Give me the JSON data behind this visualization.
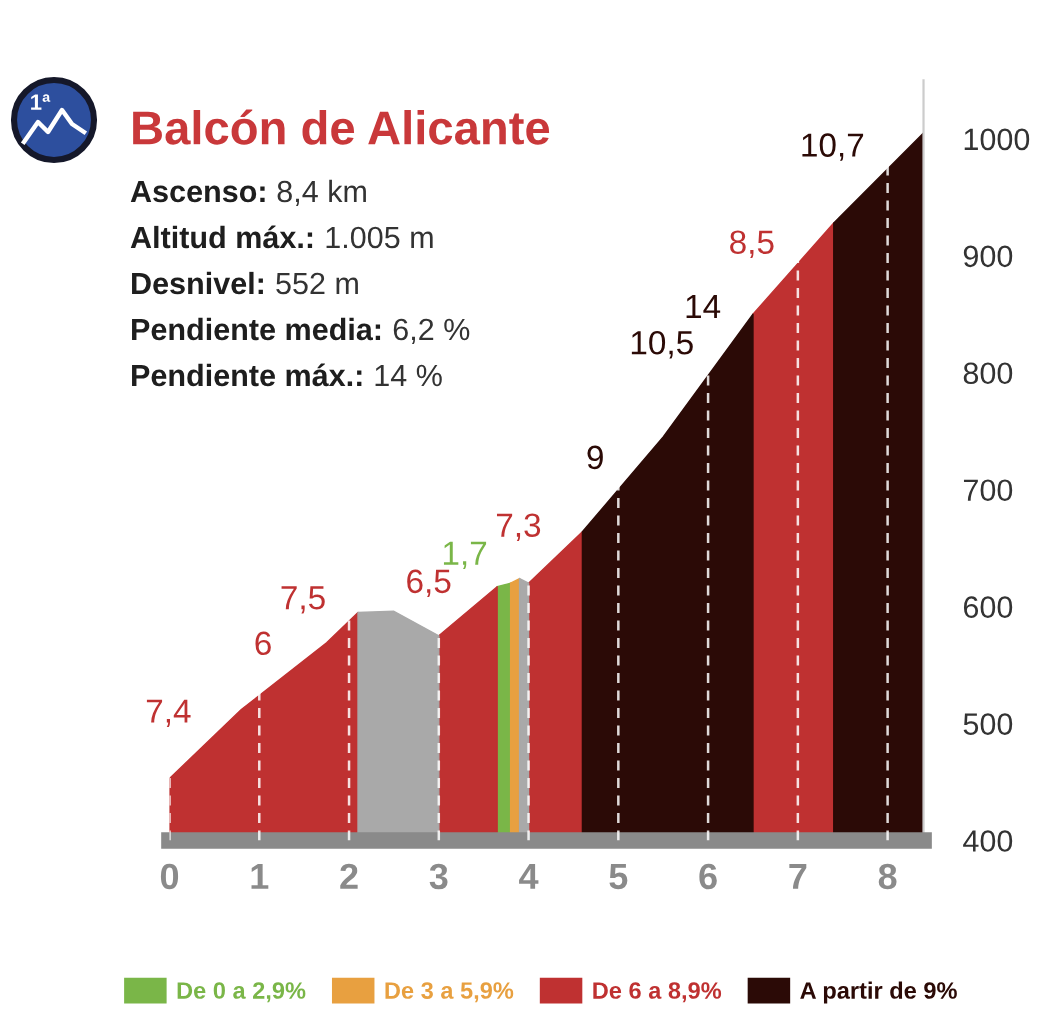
{
  "chart_data": {
    "type": "area",
    "title": "Balcón de Alicante",
    "annotations": [
      "1ª",
      "Ascenso: 8,4 km",
      "Altitud máx.: 1.005 m",
      "Desnivel: 552 m",
      "Pendiente media: 6,2 %",
      "Pendiente máx.: 14 %",
      {
        "text": "7,4",
        "x": 0.4,
        "y": 483
      },
      {
        "text": "6",
        "x": 1.3,
        "y": 541
      },
      {
        "text": "7,5",
        "x": 1.9,
        "y": 580
      },
      {
        "text": "6,5",
        "x": 3.3,
        "y": 594
      },
      {
        "text": "1,7",
        "x": 3.7,
        "y": 618
      },
      {
        "text": "7,3",
        "x": 4.3,
        "y": 642
      },
      {
        "text": "9",
        "x": 5.0,
        "y": 700
      },
      {
        "text": "10,5",
        "x": 6.0,
        "y": 798
      },
      {
        "text": "14",
        "x": 6.3,
        "y": 829
      },
      {
        "text": "8,5",
        "x": 6.9,
        "y": 884
      },
      {
        "text": "10,7",
        "x": 7.9,
        "y": 967
      }
    ],
    "series": [
      {
        "name": "De 0 a 2,9%",
        "color": "#7ab648",
        "x": [
          3.65,
          3.8
        ],
        "values": [
          617,
          620
        ]
      },
      {
        "name": "De 3 a 5,9%",
        "color": "#e8a040",
        "x": [
          3.8,
          3.9
        ],
        "values": [
          620,
          624
        ]
      },
      {
        "name": "De 6 a 8,9%",
        "color": "#bf3131",
        "x": [
          0,
          0.8,
          1.75,
          2.1
        ],
        "values": [
          453,
          512,
          569,
          595
        ]
      },
      {
        "color": "#bf3131",
        "x": [
          3.0,
          3.65
        ],
        "values": [
          575,
          617
        ]
      },
      {
        "color": "#bf3131",
        "x": [
          4.0,
          4.6
        ],
        "values": [
          620,
          664
        ]
      },
      {
        "color": "#bf3131",
        "x": [
          6.5,
          7.4
        ],
        "values": [
          850,
          928
        ]
      },
      {
        "name": "A partir de 9%",
        "color": "#2b0a06",
        "x": [
          4.6,
          5.5,
          6.5
        ],
        "values": [
          664,
          745,
          850
        ]
      },
      {
        "color": "#2b0a06",
        "x": [
          7.4,
          8.4
        ],
        "values": [
          928,
          1005
        ]
      },
      {
        "color": "#a9a9a9",
        "x": [
          2.1,
          2.5,
          3.0
        ],
        "values": [
          595,
          596,
          575
        ]
      },
      {
        "color": "#a9a9a9",
        "x": [
          3.9,
          4.0
        ],
        "values": [
          624,
          620
        ]
      }
    ],
    "xlim": [
      0,
      8.4
    ],
    "xticks": [
      0,
      1,
      2,
      3,
      4,
      5,
      6,
      7,
      8
    ],
    "ylim": [
      400,
      1050
    ],
    "yticks": [
      400,
      500,
      600,
      700,
      800,
      900,
      1000
    ],
    "grid": "x",
    "legend": "bottom"
  }
}
